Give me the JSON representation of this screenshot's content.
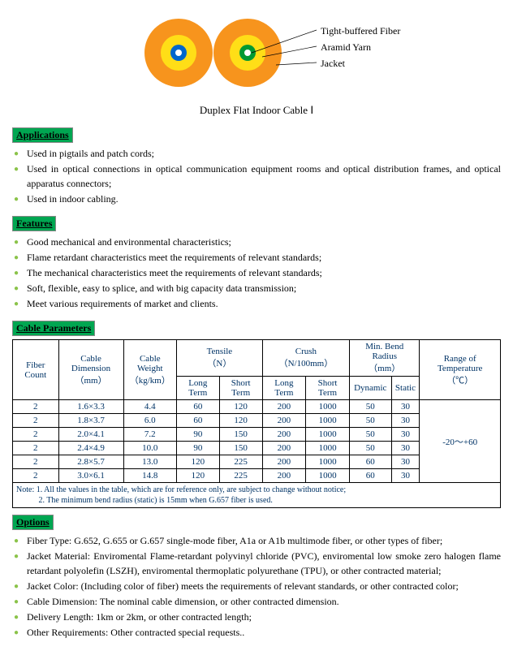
{
  "diagram": {
    "labels": [
      "Tight-buffered Fiber",
      "Aramid Yarn",
      "Jacket"
    ],
    "colors": {
      "jacket": "#f7941d",
      "aramid": "#ffde17",
      "buffer_left": "#0066cc",
      "center_left": "#ffffff",
      "buffer_right": "#009933",
      "center_right": "#ffffff"
    }
  },
  "title": "Duplex Flat Indoor Cable Ⅰ",
  "sections": {
    "applications": {
      "header": "Applications",
      "items": [
        "Used in pigtails and patch cords;",
        "Used in optical connections in optical communication equipment rooms and optical distribution frames, and optical apparatus connectors;",
        "Used in indoor cabling."
      ]
    },
    "features": {
      "header": "Features",
      "items": [
        "Good mechanical and environmental characteristics;",
        "Flame retardant characteristics meet the requirements of relevant standards;",
        "The mechanical characteristics meet the requirements of relevant standards;",
        "Soft, flexible, easy to splice, and with big capacity data transmission;",
        "Meet various requirements of market and clients."
      ]
    },
    "options": {
      "header": "Options",
      "items": [
        "Fiber Type: G.652, G.655 or G.657 single-mode fiber, A1a or A1b multimode fiber, or other types of fiber;",
        "Jacket Material: Enviromental Flame-retardant polyvinyl chloride (PVC), enviromental low smoke zero halogen flame retardant polyolefin (LSZH), enviromental thermoplatic polyurethane (TPU), or other contracted material;",
        "Jacket Color: (Including color of fiber) meets the requirements of relevant standards, or other contracted color;",
        "Cable Dimension: The nominal cable dimension, or other contracted dimension.",
        "Delivery Length: 1km or 2km, or other contracted length;",
        "Other Requirements: Other contracted special requests.."
      ]
    }
  },
  "table": {
    "header": "Cable Parameters",
    "cols": {
      "fiber_count": "Fiber Count",
      "dimension": "Cable Dimension",
      "dimension_unit": "（mm）",
      "weight": "Cable Weight",
      "weight_unit": "（kg/km）",
      "tensile": "Tensile",
      "tensile_unit": "（N）",
      "crush": "Crush",
      "crush_unit": "（N/100mm）",
      "bend": "Min. Bend Radius",
      "bend_unit": "（mm）",
      "temp": "Range of Temperature",
      "temp_unit": "（℃）",
      "long_term": "Long Term",
      "short_term": "Short Term",
      "dynamic": "Dynamic",
      "static": "Static"
    },
    "rows": [
      {
        "fc": "2",
        "dim": "1.6×3.3",
        "wt": "4.4",
        "tl": "60",
        "ts": "120",
        "cl": "200",
        "cs": "1000",
        "bd": "50",
        "bs": "30"
      },
      {
        "fc": "2",
        "dim": "1.8×3.7",
        "wt": "6.0",
        "tl": "60",
        "ts": "120",
        "cl": "200",
        "cs": "1000",
        "bd": "50",
        "bs": "30"
      },
      {
        "fc": "2",
        "dim": "2.0×4.1",
        "wt": "7.2",
        "tl": "90",
        "ts": "150",
        "cl": "200",
        "cs": "1000",
        "bd": "50",
        "bs": "30"
      },
      {
        "fc": "2",
        "dim": "2.4×4.9",
        "wt": "10.0",
        "tl": "90",
        "ts": "150",
        "cl": "200",
        "cs": "1000",
        "bd": "50",
        "bs": "30"
      },
      {
        "fc": "2",
        "dim": "2.8×5.7",
        "wt": "13.0",
        "tl": "120",
        "ts": "225",
        "cl": "200",
        "cs": "1000",
        "bd": "60",
        "bs": "30"
      },
      {
        "fc": "2",
        "dim": "3.0×6.1",
        "wt": "14.8",
        "tl": "120",
        "ts": "225",
        "cl": "200",
        "cs": "1000",
        "bd": "60",
        "bs": "30"
      }
    ],
    "temp_range": "-20～+60",
    "notes": [
      "Note: 1. All the values in the table, which are for reference only, are subject to change without notice;",
      "           2. The minimum bend radius (static) is 15mm when G.657 fiber is used."
    ]
  }
}
